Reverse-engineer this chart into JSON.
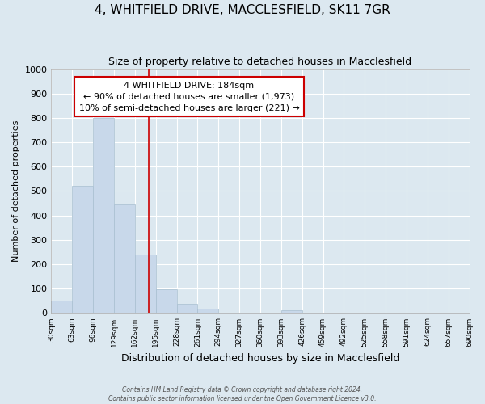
{
  "title": "4, WHITFIELD DRIVE, MACCLESFIELD, SK11 7GR",
  "subtitle": "Size of property relative to detached houses in Macclesfield",
  "xlabel": "Distribution of detached houses by size in Macclesfield",
  "ylabel": "Number of detached properties",
  "bin_edges": [
    30,
    63,
    96,
    129,
    162,
    195,
    228,
    261,
    294,
    327,
    360,
    393,
    426,
    459,
    492,
    525,
    558,
    591,
    624,
    657,
    690
  ],
  "bar_heights": [
    52,
    520,
    800,
    445,
    240,
    98,
    38,
    18,
    0,
    0,
    0,
    10,
    0,
    0,
    0,
    0,
    0,
    0,
    0,
    0
  ],
  "bar_color": "#c8d8ea",
  "bar_edge_color": "#a8bfd0",
  "property_size": 184,
  "vline_color": "#cc0000",
  "annotation_line1": "4 WHITFIELD DRIVE: 184sqm",
  "annotation_line2": "← 90% of detached houses are smaller (1,973)",
  "annotation_line3": "10% of semi-detached houses are larger (221) →",
  "annotation_box_color": "white",
  "annotation_box_edge": "#cc0000",
  "ylim": [
    0,
    1000
  ],
  "background_color": "#dce8f0",
  "grid_color": "white",
  "tick_labels": [
    "30sqm",
    "63sqm",
    "96sqm",
    "129sqm",
    "162sqm",
    "195sqm",
    "228sqm",
    "261sqm",
    "294sqm",
    "327sqm",
    "360sqm",
    "393sqm",
    "426sqm",
    "459sqm",
    "492sqm",
    "525sqm",
    "558sqm",
    "591sqm",
    "624sqm",
    "657sqm",
    "690sqm"
  ],
  "footer_line1": "Contains HM Land Registry data © Crown copyright and database right 2024.",
  "footer_line2": "Contains public sector information licensed under the Open Government Licence v3.0."
}
